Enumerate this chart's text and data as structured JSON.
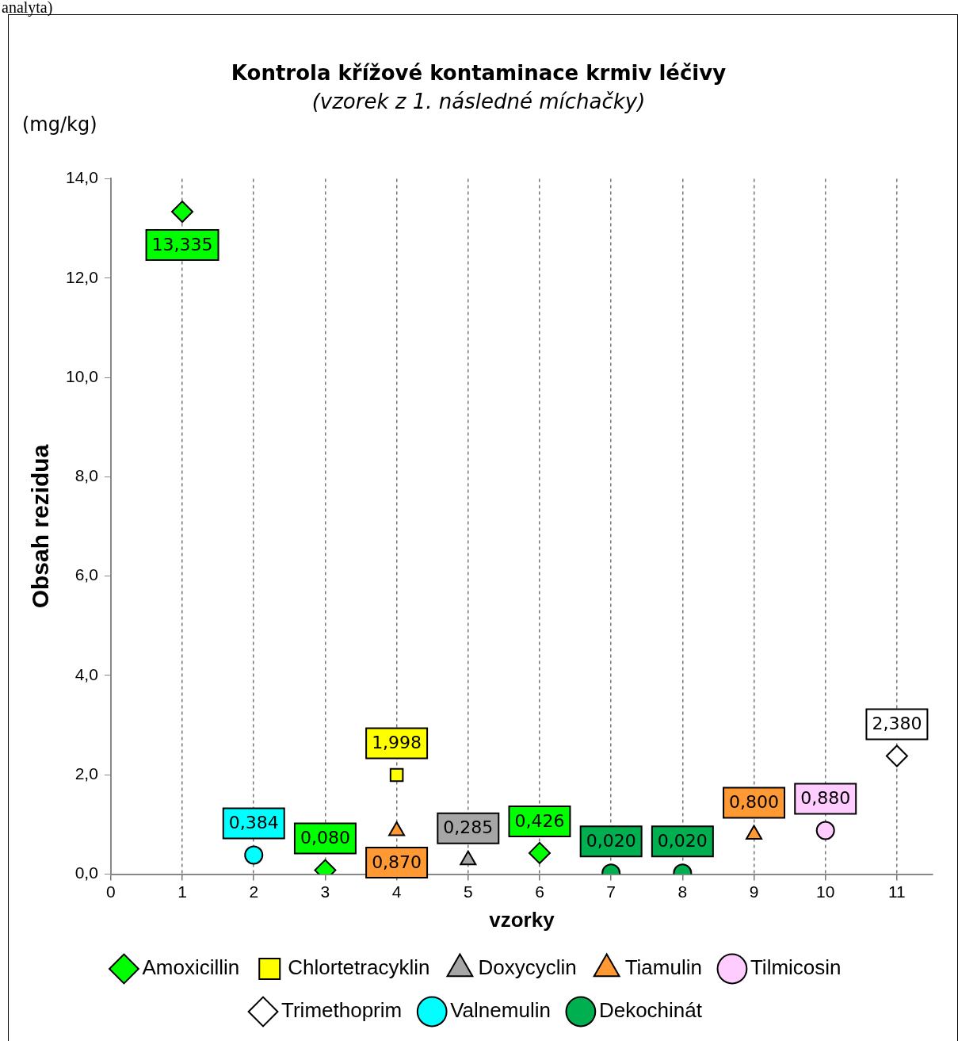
{
  "chart_data": {
    "type": "scatter",
    "title": "Kontrola křížové kontaminace krmiv léčivy",
    "subtitle": "(vzorek z 1. následné míchačky)",
    "xlabel": "vzorky",
    "ylabel": "Obsah rezidua",
    "annotations": [
      "analyta)",
      "(mg/kg)"
    ],
    "xlim": [
      0,
      11.5
    ],
    "xticks": [
      0,
      1,
      2,
      3,
      4,
      5,
      6,
      7,
      8,
      9,
      10,
      11
    ],
    "ylim": [
      0,
      14
    ],
    "yticks": [
      {
        "value": 0,
        "label": "0,0"
      },
      {
        "value": 2,
        "label": "2,0"
      },
      {
        "value": 4,
        "label": "4,0"
      },
      {
        "value": 6,
        "label": "6,0"
      },
      {
        "value": 8,
        "label": "8,0"
      },
      {
        "value": 10,
        "label": "10,0"
      },
      {
        "value": 12,
        "label": "12,0"
      },
      {
        "value": 14,
        "label": "14,0"
      }
    ],
    "grid": "x",
    "legend": "bottom",
    "series": [
      {
        "name": "Amoxicillin",
        "color": "#00ff00",
        "marker": "diamond",
        "x": [
          1,
          3,
          6
        ],
        "values": [
          13.335,
          0.08,
          0.426
        ],
        "value_labels": [
          "13,335",
          "0,080",
          "0,426"
        ]
      },
      {
        "name": "Chlortetracyklin",
        "color": "#ffff00",
        "marker": "square",
        "x": [
          4
        ],
        "values": [
          1.998
        ],
        "value_labels": [
          "1,998"
        ]
      },
      {
        "name": "Doxycyclin",
        "color": "#a6a6a6",
        "marker": "triangle",
        "x": [
          5
        ],
        "values": [
          0.285
        ],
        "value_labels": [
          "0,285"
        ]
      },
      {
        "name": "Tiamulin",
        "color": "#ff9933",
        "marker": "triangle",
        "x": [
          4,
          9
        ],
        "values": [
          0.87,
          0.8
        ],
        "value_labels": [
          "0,870",
          "0,800"
        ]
      },
      {
        "name": "Tilmicosin",
        "color": "#ffccff",
        "marker": "circle",
        "x": [
          10
        ],
        "values": [
          0.88
        ],
        "value_labels": [
          "0,880"
        ]
      },
      {
        "name": "Trimethoprim",
        "color": "#ffffff",
        "marker": "diamond",
        "x": [
          11
        ],
        "values": [
          2.38
        ],
        "value_labels": [
          "2,380"
        ]
      },
      {
        "name": "Valnemulin",
        "color": "#00ffff",
        "marker": "circle",
        "x": [
          2
        ],
        "values": [
          0.384
        ],
        "value_labels": [
          "0,384"
        ]
      },
      {
        "name": "Dekochinát",
        "color": "#00b050",
        "marker": "circle",
        "x": [
          7,
          8
        ],
        "values": [
          0.02,
          0.02
        ],
        "value_labels": [
          "0,020",
          "0,020"
        ]
      }
    ]
  }
}
